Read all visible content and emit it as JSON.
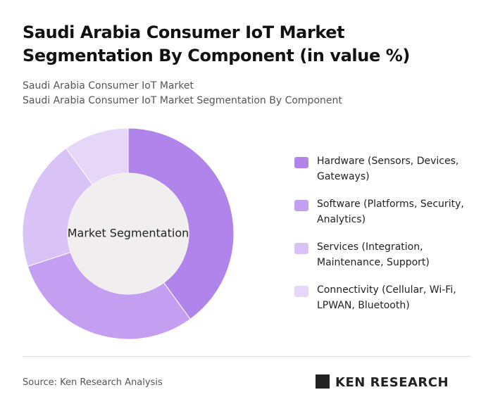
{
  "chart_data": {
    "type": "donut",
    "title": "Saudi Arabia Consumer IoT Market Segmentation By Component (in value %)",
    "subtitle": [
      "Saudi Arabia Consumer IoT Market",
      "Saudi Arabia Consumer IoT Market Segmentation By Component"
    ],
    "center_label": "Market Segmentation",
    "categories": [
      "Hardware (Sensors, Devices, Gateways)",
      "Software (Platforms, Security, Analytics)",
      "Services (Integration, Maintenance, Support)",
      "Connectivity (Cellular, Wi-Fi, LPWAN, Bluetooth)"
    ],
    "values": [
      40,
      30,
      20,
      10
    ],
    "colors": [
      "#b084ea",
      "#c49ef0",
      "#d9c2f5",
      "#e6d7f8"
    ]
  },
  "footer": {
    "source": "Source: Ken Research Analysis",
    "logo": "KEN RESEARCH"
  }
}
